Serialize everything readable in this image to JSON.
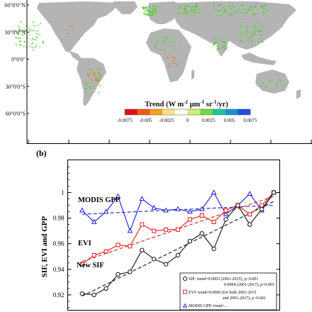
{
  "panel_a": {
    "lat_labels": [
      "60°0'0\"N",
      "30°0'0\"N",
      "0°0'0\"",
      "30°0'0\"S",
      "60°0'0\"S"
    ],
    "lat_values": [
      60,
      30,
      0,
      -30,
      -60
    ],
    "legend_title_parts": [
      "Trend (W m",
      "-2",
      " μm",
      "-1",
      " sr",
      "-1",
      "/yr)"
    ],
    "legend_ticks": [
      "-0.0075",
      "-0.005",
      "-0.0025",
      "0",
      "0.0025",
      "0.005",
      "0.0075"
    ],
    "legend_tick_values": [
      -0.0075,
      -0.005,
      -0.0025,
      0,
      0.0025,
      0.005,
      0.0075
    ],
    "legend_colors": [
      "#e01010",
      "#f05a10",
      "#f7a01a",
      "#fae28a",
      "#fdfdf0",
      "#c9f07a",
      "#6fdc32",
      "#19c8a0",
      "#1a8fd8",
      "#1f4fe0"
    ],
    "colors": {
      "land": "#b4b4b4",
      "greening": "#4fc832",
      "browning": "#e8742a",
      "ocean": "#ffffff"
    }
  },
  "panel_b": {
    "label": "(b)",
    "ylabel": "SIF, EVI and GPP",
    "series_labels": [
      "MODIS GPP",
      "EVI",
      "New SIF"
    ],
    "legend_lines": [
      "SIF: trend=0.0003 (2001-2015), p<0.001",
      "0.0004 (2001-2017), p<0.001",
      "EVI: trend=0.0006 (for both 2001-2015",
      "and 2001-2017), p<0.001",
      "MODIS GPP: trend=..."
    ]
  },
  "chart_data": {
    "type": "line",
    "ylabel": "SIF, EVI and GPP",
    "y_ticks": [
      0.92,
      0.94,
      0.96,
      0.98,
      1
    ],
    "ylim": [
      0.908,
      1.0255
    ],
    "x": [
      2001,
      2002,
      2003,
      2004,
      2005,
      2006,
      2007,
      2008,
      2009,
      2010,
      2011,
      2012,
      2013,
      2014,
      2015,
      2016,
      2017
    ],
    "xlim": [
      1999.8,
      2017.5
    ],
    "series": [
      {
        "name": "MODIS GPP",
        "color": "#1c1cd6",
        "marker": "triangle",
        "values": [
          0.986,
          0.977,
          0.985,
          0.997,
          0.97,
          0.995,
          0.988,
          0.986,
          0.987,
          0.985,
          0.987,
          1.0,
          0.983,
          0.99,
          0.999,
          0.986,
          1.0
        ],
        "trend": [
          0.983,
          0.99
        ]
      },
      {
        "name": "EVI",
        "color": "#e01b1b",
        "marker": "square",
        "values": [
          0.944,
          0.951,
          0.954,
          0.959,
          0.958,
          0.975,
          0.97,
          0.971,
          0.971,
          0.979,
          0.982,
          0.977,
          0.986,
          0.99,
          0.983,
          0.99,
          1.0
        ],
        "trend": [
          0.946,
          0.997
        ]
      },
      {
        "name": "New SIF",
        "color": "#111111",
        "marker": "circle",
        "values": [
          0.921,
          0.92,
          0.925,
          0.936,
          0.938,
          0.955,
          0.948,
          0.944,
          0.951,
          0.962,
          0.968,
          0.956,
          0.979,
          0.99,
          0.975,
          0.987,
          1.0
        ],
        "trend": [
          0.919,
          0.993
        ]
      }
    ]
  }
}
